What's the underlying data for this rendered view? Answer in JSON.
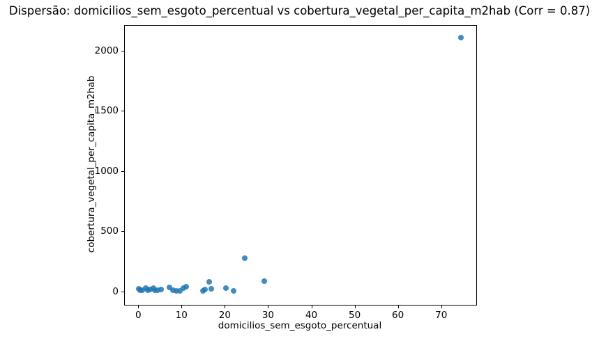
{
  "chart_data": {
    "type": "scatter",
    "title": "Dispersão: domicilios_sem_esgoto_percentual vs cobertura_vegetal_per_capita_m2hab (Corr = 0.87)",
    "xlabel": "domicilios_sem_esgoto_percentual",
    "ylabel": "cobertura_vegetal_per_capita_m2hab",
    "correlation": 0.87,
    "marker_color": "#1f77b4",
    "grid": false,
    "legend_position": "none",
    "xlim": [
      -3.1,
      78.1
    ],
    "ylim": [
      -112,
      2207
    ],
    "xticks": [
      0,
      10,
      20,
      30,
      40,
      50,
      60,
      70
    ],
    "yticks": [
      0,
      500,
      1000,
      1500,
      2000
    ],
    "points": [
      [
        0.1,
        21
      ],
      [
        0.5,
        8
      ],
      [
        0.9,
        9
      ],
      [
        1.8,
        29
      ],
      [
        2.2,
        12
      ],
      [
        2.7,
        15
      ],
      [
        3.5,
        25
      ],
      [
        3.9,
        10
      ],
      [
        4.5,
        9
      ],
      [
        5.3,
        13
      ],
      [
        7.2,
        35
      ],
      [
        8.0,
        9
      ],
      [
        8.8,
        1
      ],
      [
        9.6,
        6
      ],
      [
        10.4,
        25
      ],
      [
        11.1,
        40
      ],
      [
        14.9,
        2
      ],
      [
        15.4,
        13
      ],
      [
        16.4,
        81
      ],
      [
        16.8,
        19
      ],
      [
        20.2,
        27
      ],
      [
        22.0,
        4
      ],
      [
        24.6,
        274
      ],
      [
        29.1,
        85
      ],
      [
        74.5,
        2110
      ]
    ]
  }
}
